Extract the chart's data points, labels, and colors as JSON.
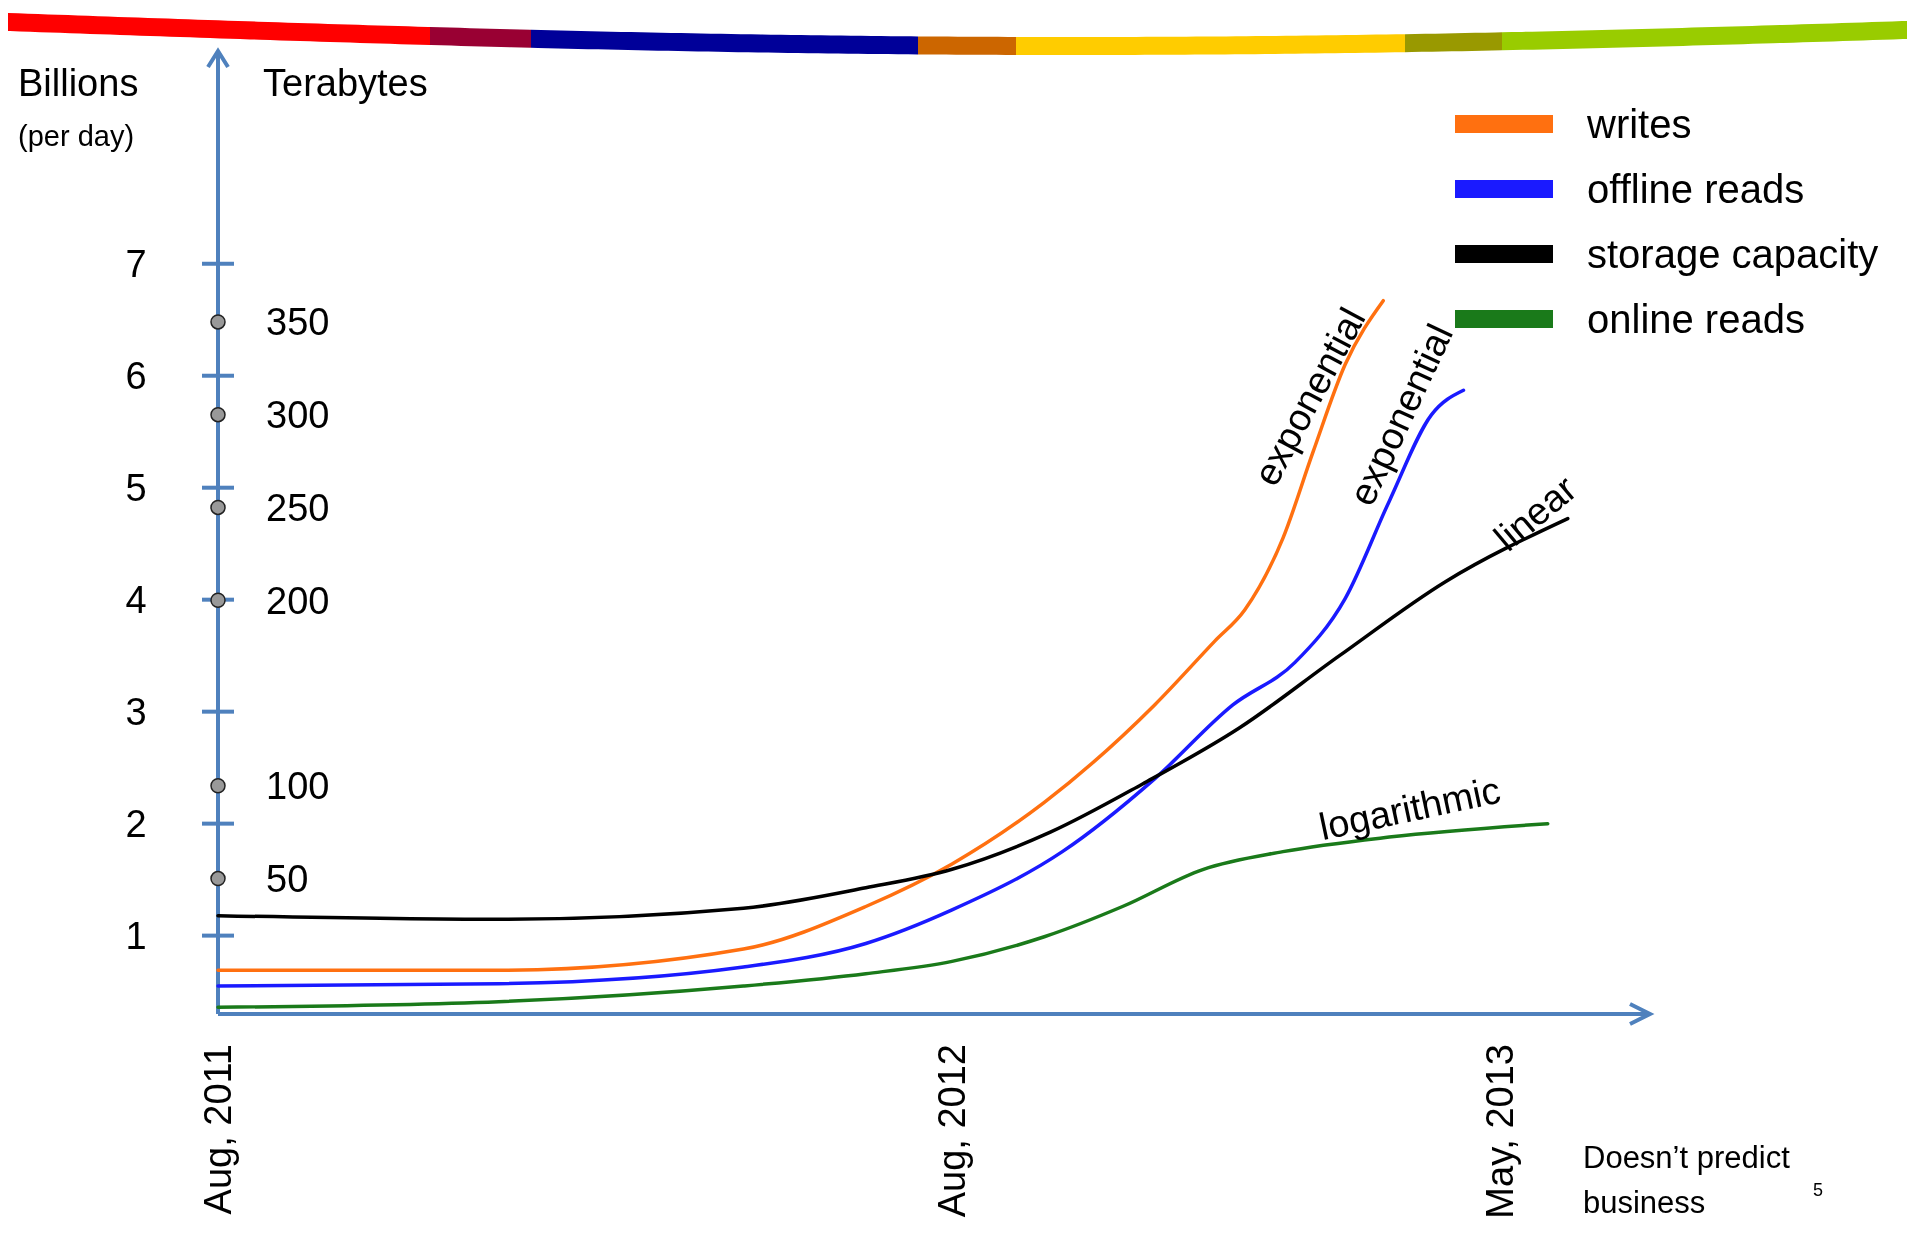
{
  "chart_data": {
    "type": "line",
    "ylabel": "Billions\n(per day)",
    "y2label": "Terabytes",
    "xlim": [
      "2011-08-01",
      "2013-07-15"
    ],
    "xticks": [
      {
        "value": "2011-08-01",
        "label": "Aug, 2011"
      },
      {
        "value": "2012-08-01",
        "label": "Aug, 2012"
      },
      {
        "value": "2013-05-01",
        "label": "May, 2013"
      }
    ],
    "ylim": [
      0.3,
      8.9
    ],
    "yticks": [
      1,
      2,
      3,
      4,
      5,
      6,
      7
    ],
    "y2lim": [
      -23,
      496
    ],
    "y2ticks": [
      50,
      100,
      200,
      250,
      300,
      350
    ],
    "legend": "top right",
    "series": [
      {
        "name": "writes",
        "color": "#ff7010",
        "x": [
          "2011-08-01",
          "2011-12-19",
          "2012-04-19",
          "2012-06-19",
          "2012-08-01",
          "2012-09-16",
          "2012-11-10",
          "2012-12-10",
          "2012-12-25",
          "2013-01-13",
          "2013-01-28",
          "2013-02-13",
          "2013-03-04"
        ],
        "values": [
          0.69,
          0.69,
          0.88,
          1.26,
          1.64,
          2.19,
          3.06,
          3.63,
          3.91,
          4.55,
          5.32,
          6.1,
          6.67
        ]
      },
      {
        "name": "offline reads",
        "color": "#1a1aff",
        "x": [
          "2011-08-01",
          "2011-12-19",
          "2012-04-19",
          "2012-06-19",
          "2012-08-01",
          "2012-09-25",
          "2012-11-10",
          "2012-12-19",
          "2013-01-19",
          "2013-02-13",
          "2013-03-07",
          "2013-03-28",
          "2013-04-13"
        ],
        "values": [
          0.55,
          0.57,
          0.72,
          0.93,
          1.23,
          1.75,
          2.4,
          3.06,
          3.44,
          4.01,
          4.88,
          5.65,
          5.87
        ]
      },
      {
        "name": "storage capacity",
        "color": "#000000",
        "axis": "y2",
        "x": [
          "2011-08-01",
          "2011-12-19",
          "2012-04-19",
          "2012-06-19",
          "2012-08-01",
          "2012-09-19",
          "2012-11-04",
          "2012-12-22",
          "2013-02-10",
          "2013-04-04",
          "2013-06-04"
        ],
        "values": [
          30,
          28,
          34,
          45,
          55,
          75,
          101,
          131,
          170,
          210,
          244
        ]
      },
      {
        "name": "online reads",
        "color": "#1a7a1a",
        "x": [
          "2011-08-01",
          "2011-12-19",
          "2012-04-19",
          "2012-06-19",
          "2012-08-01",
          "2012-09-16",
          "2012-10-25",
          "2012-12-04",
          "2013-01-13",
          "2013-03-07",
          "2013-05-25"
        ],
        "values": [
          0.36,
          0.41,
          0.55,
          0.66,
          0.77,
          0.99,
          1.26,
          1.59,
          1.75,
          1.88,
          2.0
        ]
      }
    ],
    "annotations": [
      {
        "text": "exponential",
        "x": "2013-02-07",
        "y": 5.7
      },
      {
        "text": "exponential",
        "x": "2013-03-25",
        "y": 5.55
      },
      "linear",
      {
        "text": "logarithmic",
        "x": "2013-03-20",
        "y": 1.9
      },
      "Doesn’t predict\nbusiness",
      "5"
    ]
  }
}
